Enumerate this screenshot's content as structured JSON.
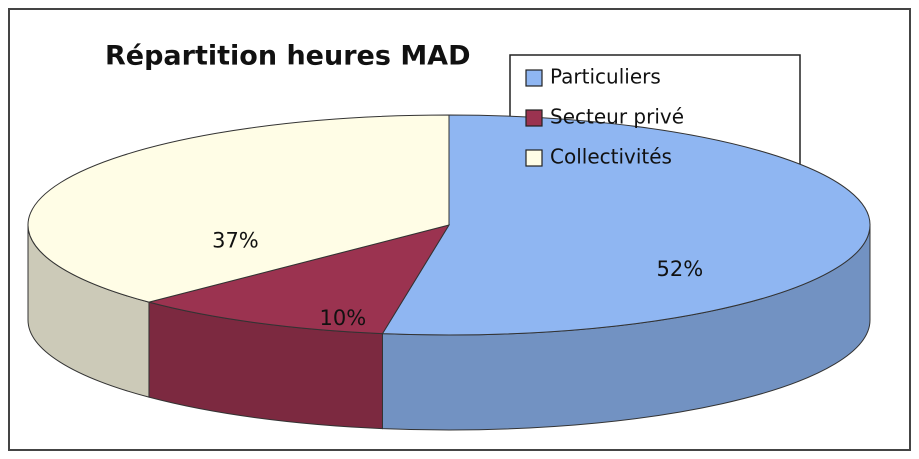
{
  "chart_data": {
    "type": "pie3d",
    "title": "Répartition heures MAD",
    "categories": [
      "Particuliers",
      "Secteur privé",
      "Collectivités"
    ],
    "values": [
      52,
      10,
      37
    ],
    "value_labels": [
      "52%",
      "10%",
      "37%"
    ],
    "colors": [
      "#8fb6f2",
      "#9b3350",
      "#fffde6"
    ],
    "legend": "top-right"
  }
}
